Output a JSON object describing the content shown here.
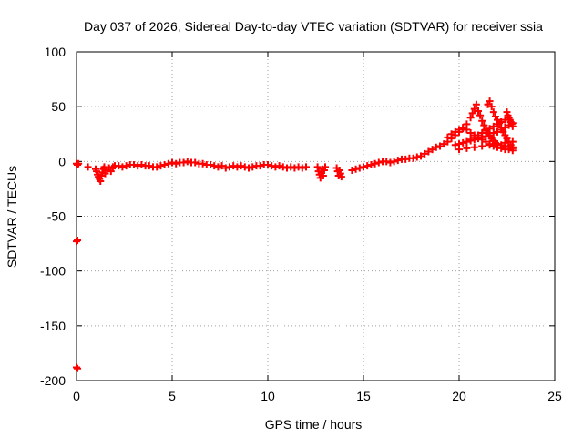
{
  "chart_data": {
    "type": "scatter",
    "title": "Day 037 of 2026, Sidereal Day-to-day VTEC variation (SDTVAR) for receiver ssia",
    "xlabel": "GPS time / hours",
    "ylabel": "SDTVAR / TECUs",
    "xlim": [
      0,
      25
    ],
    "ylim": [
      -200,
      100
    ],
    "xticks": [
      0,
      5,
      10,
      15,
      20,
      25
    ],
    "xtick_labels": [
      "0",
      "5",
      "10",
      "15",
      "20",
      "25"
    ],
    "yticks": [
      -200,
      -150,
      -100,
      -50,
      0,
      50,
      100
    ],
    "ytick_labels": [
      "-200",
      "-150",
      "-100",
      "-50",
      "0",
      "50",
      "100"
    ],
    "grid": true,
    "marker": "+",
    "color": "#ff0000",
    "series": [
      {
        "name": "SDTVAR",
        "points": [
          [
            0.0,
            -2
          ],
          [
            0.05,
            -3
          ],
          [
            0.1,
            -2
          ],
          [
            0.0,
            -73
          ],
          [
            0.05,
            -72
          ],
          [
            0.0,
            -188
          ],
          [
            0.05,
            -189
          ],
          [
            0.6,
            -5
          ],
          [
            1.0,
            -7
          ],
          [
            1.05,
            -9
          ],
          [
            1.1,
            -12
          ],
          [
            1.15,
            -14
          ],
          [
            1.2,
            -16
          ],
          [
            1.25,
            -18
          ],
          [
            1.3,
            -13
          ],
          [
            1.35,
            -10
          ],
          [
            1.4,
            -7
          ],
          [
            1.45,
            -5
          ],
          [
            1.5,
            -11
          ],
          [
            1.6,
            -8
          ],
          [
            1.7,
            -6
          ],
          [
            1.8,
            -9
          ],
          [
            1.9,
            -5
          ],
          [
            2.0,
            -4
          ],
          [
            2.2,
            -4
          ],
          [
            2.4,
            -5
          ],
          [
            2.6,
            -4
          ],
          [
            2.8,
            -3
          ],
          [
            3.0,
            -3
          ],
          [
            3.2,
            -4
          ],
          [
            3.4,
            -3
          ],
          [
            3.6,
            -4
          ],
          [
            3.8,
            -4
          ],
          [
            4.0,
            -5
          ],
          [
            4.2,
            -5
          ],
          [
            4.4,
            -4
          ],
          [
            4.6,
            -3
          ],
          [
            4.8,
            -2
          ],
          [
            5.0,
            -1
          ],
          [
            5.2,
            -2
          ],
          [
            5.4,
            -1
          ],
          [
            5.6,
            -1
          ],
          [
            5.8,
            0
          ],
          [
            6.0,
            -1
          ],
          [
            6.2,
            -1
          ],
          [
            6.4,
            -2
          ],
          [
            6.6,
            -2
          ],
          [
            6.8,
            -3
          ],
          [
            7.0,
            -3
          ],
          [
            7.2,
            -4
          ],
          [
            7.4,
            -5
          ],
          [
            7.6,
            -4
          ],
          [
            7.8,
            -6
          ],
          [
            8.0,
            -5
          ],
          [
            8.2,
            -4
          ],
          [
            8.4,
            -5
          ],
          [
            8.6,
            -4
          ],
          [
            8.8,
            -5
          ],
          [
            9.0,
            -6
          ],
          [
            9.2,
            -5
          ],
          [
            9.4,
            -4
          ],
          [
            9.6,
            -4
          ],
          [
            9.8,
            -3
          ],
          [
            10.0,
            -3
          ],
          [
            10.2,
            -4
          ],
          [
            10.4,
            -5
          ],
          [
            10.6,
            -4
          ],
          [
            10.8,
            -5
          ],
          [
            11.0,
            -6
          ],
          [
            11.2,
            -5
          ],
          [
            11.4,
            -6
          ],
          [
            11.6,
            -5
          ],
          [
            11.8,
            -6
          ],
          [
            12.0,
            -5
          ],
          [
            12.6,
            -5
          ],
          [
            12.65,
            -9
          ],
          [
            12.7,
            -12
          ],
          [
            12.75,
            -15
          ],
          [
            12.8,
            -10
          ],
          [
            12.85,
            -7
          ],
          [
            12.9,
            -13
          ],
          [
            12.95,
            -8
          ],
          [
            13.0,
            -5
          ],
          [
            13.6,
            -6
          ],
          [
            13.65,
            -9
          ],
          [
            13.7,
            -13
          ],
          [
            13.75,
            -8
          ],
          [
            13.8,
            -11
          ],
          [
            13.85,
            -14
          ],
          [
            14.4,
            -8
          ],
          [
            14.6,
            -7
          ],
          [
            14.8,
            -6
          ],
          [
            15.0,
            -5
          ],
          [
            15.2,
            -4
          ],
          [
            15.4,
            -3
          ],
          [
            15.6,
            -2
          ],
          [
            15.8,
            -1
          ],
          [
            16.0,
            0
          ],
          [
            16.2,
            0
          ],
          [
            16.4,
            -1
          ],
          [
            16.6,
            0
          ],
          [
            16.8,
            1
          ],
          [
            17.0,
            2
          ],
          [
            17.2,
            2
          ],
          [
            17.4,
            3
          ],
          [
            17.6,
            3
          ],
          [
            17.8,
            4
          ],
          [
            18.0,
            5
          ],
          [
            18.2,
            7
          ],
          [
            18.4,
            9
          ],
          [
            18.6,
            11
          ],
          [
            18.8,
            13
          ],
          [
            19.0,
            14
          ],
          [
            19.2,
            16
          ],
          [
            19.4,
            18
          ],
          [
            19.6,
            21
          ],
          [
            19.8,
            24
          ],
          [
            20.0,
            27
          ],
          [
            20.2,
            30
          ],
          [
            20.4,
            34
          ],
          [
            20.6,
            40
          ],
          [
            20.7,
            44
          ],
          [
            20.8,
            48
          ],
          [
            20.9,
            52
          ],
          [
            21.0,
            46
          ],
          [
            21.1,
            42
          ],
          [
            21.2,
            37
          ],
          [
            21.3,
            33
          ],
          [
            21.4,
            29
          ],
          [
            21.5,
            26
          ],
          [
            21.6,
            23
          ],
          [
            21.7,
            21
          ],
          [
            21.8,
            19
          ],
          [
            21.9,
            17
          ],
          [
            22.0,
            16
          ],
          [
            22.2,
            15
          ],
          [
            22.4,
            14
          ],
          [
            22.6,
            13
          ],
          [
            22.8,
            12
          ],
          [
            19.4,
            22
          ],
          [
            19.6,
            25
          ],
          [
            19.8,
            27
          ],
          [
            20.0,
            29
          ],
          [
            20.2,
            31
          ],
          [
            20.4,
            29
          ],
          [
            20.6,
            26
          ],
          [
            20.8,
            24
          ],
          [
            21.0,
            22
          ],
          [
            21.2,
            20
          ],
          [
            21.4,
            18
          ],
          [
            21.6,
            16
          ],
          [
            21.8,
            14
          ],
          [
            22.0,
            13
          ],
          [
            22.2,
            12
          ],
          [
            22.4,
            11
          ],
          [
            22.6,
            11
          ],
          [
            22.8,
            10
          ],
          [
            19.8,
            15
          ],
          [
            20.0,
            16
          ],
          [
            20.2,
            17
          ],
          [
            20.4,
            18
          ],
          [
            20.6,
            19
          ],
          [
            20.8,
            20
          ],
          [
            21.0,
            21
          ],
          [
            21.2,
            22
          ],
          [
            21.4,
            23
          ],
          [
            21.6,
            24
          ],
          [
            21.8,
            26
          ],
          [
            22.0,
            27
          ],
          [
            22.2,
            29
          ],
          [
            22.4,
            31
          ],
          [
            22.6,
            33
          ],
          [
            22.8,
            35
          ],
          [
            21.5,
            52
          ],
          [
            21.6,
            55
          ],
          [
            21.7,
            50
          ],
          [
            21.8,
            45
          ],
          [
            21.9,
            41
          ],
          [
            22.0,
            38
          ],
          [
            22.1,
            35
          ],
          [
            22.2,
            31
          ],
          [
            22.3,
            27
          ],
          [
            22.4,
            24
          ],
          [
            22.5,
            21
          ],
          [
            22.6,
            18
          ],
          [
            22.7,
            15
          ],
          [
            22.8,
            13
          ],
          [
            22.5,
            45
          ],
          [
            22.55,
            42
          ],
          [
            22.6,
            40
          ],
          [
            22.65,
            38
          ],
          [
            22.7,
            36
          ],
          [
            22.75,
            34
          ],
          [
            22.8,
            32
          ],
          [
            20.0,
            11
          ],
          [
            20.4,
            12
          ],
          [
            20.8,
            13
          ],
          [
            21.2,
            14
          ],
          [
            21.6,
            15
          ],
          [
            22.0,
            16
          ],
          [
            22.4,
            17
          ],
          [
            22.8,
            18
          ],
          [
            20.6,
            20
          ],
          [
            20.8,
            22
          ],
          [
            21.0,
            24
          ],
          [
            21.2,
            26
          ],
          [
            21.4,
            28
          ],
          [
            21.6,
            30
          ],
          [
            21.8,
            32
          ],
          [
            22.0,
            34
          ],
          [
            22.2,
            36
          ],
          [
            22.4,
            38
          ],
          [
            22.6,
            40
          ]
        ]
      }
    ]
  }
}
